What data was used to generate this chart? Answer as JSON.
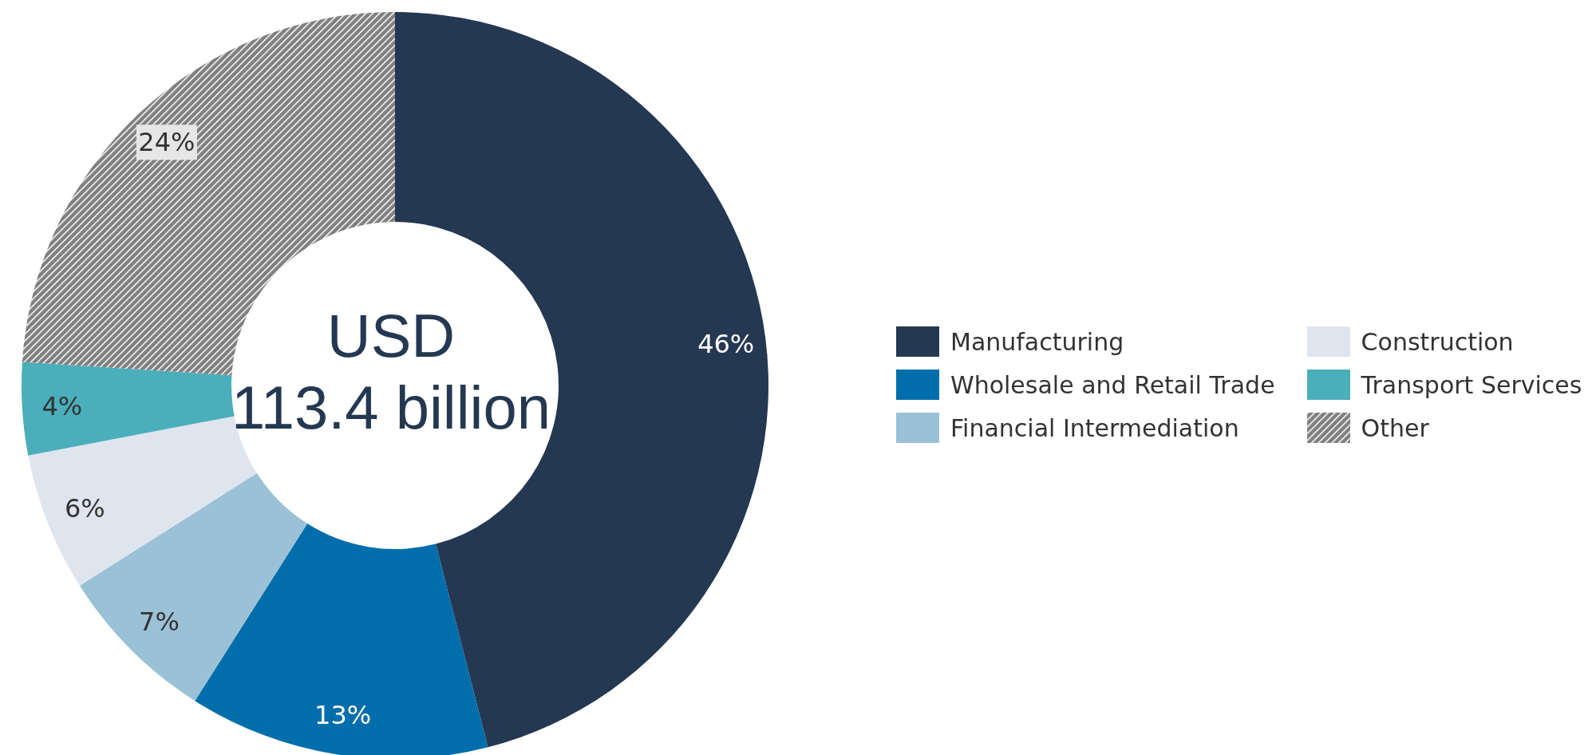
{
  "chart_data": {
    "type": "donut",
    "categories": [
      "Manufacturing",
      "Wholesale and Retail Trade",
      "Financial Intermediation",
      "Construction",
      "Transport Services",
      "Other"
    ],
    "values": [
      46,
      13,
      7,
      6,
      4,
      24
    ],
    "colors": [
      "#253852",
      "#006eab",
      "#9bc1d6",
      "#dfe5ef",
      "#4aaebb",
      "#7f7f7f"
    ],
    "value_labels": [
      "46%",
      "13%",
      "7%",
      "6%",
      "4%",
      "24%"
    ],
    "legend": "right",
    "annotations": [
      "USD",
      "113.4 billion"
    ]
  }
}
